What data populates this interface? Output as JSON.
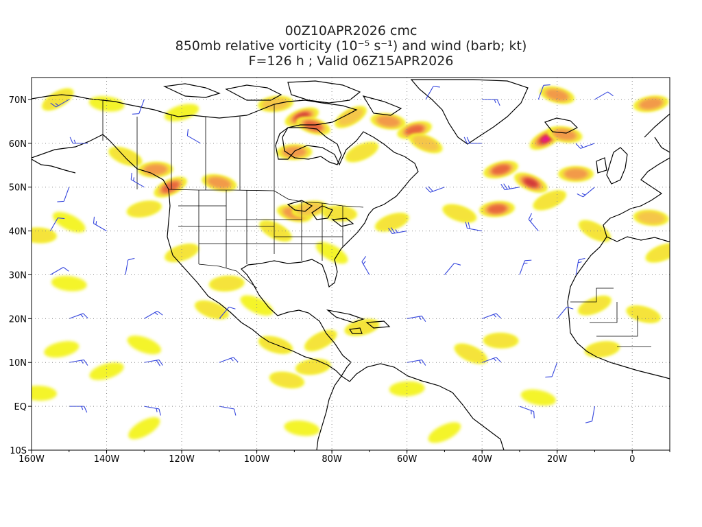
{
  "title": {
    "line1": "00Z10APR2026 cmc",
    "line2": "850mb relative vorticity (10⁻⁵ s⁻¹) and wind (barb; kt)",
    "line3": "F=126 h ; Valid 06Z15APR2026"
  },
  "map": {
    "lon_range": [
      -160,
      10
    ],
    "lat_range": [
      -10,
      75
    ],
    "lon_ticks": [
      {
        "lon": -160,
        "label": "160W"
      },
      {
        "lon": -140,
        "label": "140W"
      },
      {
        "lon": -120,
        "label": "120W"
      },
      {
        "lon": -100,
        "label": "100W"
      },
      {
        "lon": -80,
        "label": "80W"
      },
      {
        "lon": -60,
        "label": "60W"
      },
      {
        "lon": -40,
        "label": "40W"
      },
      {
        "lon": -20,
        "label": "20W"
      },
      {
        "lon": 0,
        "label": "0"
      }
    ],
    "lat_ticks": [
      {
        "lat": -10,
        "label": "10S"
      },
      {
        "lat": 0,
        "label": "EQ"
      },
      {
        "lat": 10,
        "label": "10N"
      },
      {
        "lat": 20,
        "label": "20N"
      },
      {
        "lat": 30,
        "label": "30N"
      },
      {
        "lat": 40,
        "label": "40N"
      },
      {
        "lat": 50,
        "label": "50N"
      },
      {
        "lat": 60,
        "label": "60N"
      },
      {
        "lat": 70,
        "label": "70N"
      }
    ],
    "colors": {
      "coast": "#000000",
      "barb": "#3344dd",
      "grid": "#888888",
      "fill_levels": [
        "#f4f42a",
        "#f5e33a",
        "#f5c64a",
        "#f29a4a",
        "#e8683e",
        "#d23a3a",
        "#ee1199"
      ]
    },
    "vorticity_blobs": [
      {
        "lon": -153,
        "lat": 70,
        "level": 1
      },
      {
        "lon": -140,
        "lat": 69,
        "level": 0
      },
      {
        "lon": -120,
        "lat": 67,
        "level": 0
      },
      {
        "lon": -135,
        "lat": 57,
        "level": 1
      },
      {
        "lon": -127,
        "lat": 54,
        "level": 3
      },
      {
        "lon": -123,
        "lat": 50,
        "level": 4
      },
      {
        "lon": -110,
        "lat": 51,
        "level": 3
      },
      {
        "lon": -130,
        "lat": 45,
        "level": 1
      },
      {
        "lon": -150,
        "lat": 42,
        "level": 0
      },
      {
        "lon": -158,
        "lat": 39,
        "level": 1
      },
      {
        "lon": -88,
        "lat": 66,
        "level": 5
      },
      {
        "lon": -85,
        "lat": 64,
        "level": 4
      },
      {
        "lon": -95,
        "lat": 69,
        "level": 2
      },
      {
        "lon": -75,
        "lat": 66,
        "level": 2
      },
      {
        "lon": -65,
        "lat": 65,
        "level": 3
      },
      {
        "lon": -58,
        "lat": 63,
        "level": 4
      },
      {
        "lon": -55,
        "lat": 60,
        "level": 2
      },
      {
        "lon": -90,
        "lat": 58,
        "level": 3
      },
      {
        "lon": -72,
        "lat": 58,
        "level": 1
      },
      {
        "lon": -90,
        "lat": 44,
        "level": 3
      },
      {
        "lon": -86,
        "lat": 45,
        "level": 2
      },
      {
        "lon": -95,
        "lat": 40,
        "level": 1
      },
      {
        "lon": -78,
        "lat": 44,
        "level": 1
      },
      {
        "lon": -64,
        "lat": 42,
        "level": 1
      },
      {
        "lon": -46,
        "lat": 44,
        "level": 1
      },
      {
        "lon": -36,
        "lat": 45,
        "level": 4
      },
      {
        "lon": -23,
        "lat": 61,
        "level": 6
      },
      {
        "lon": -18,
        "lat": 62,
        "level": 3
      },
      {
        "lon": -35,
        "lat": 54,
        "level": 4
      },
      {
        "lon": -27,
        "lat": 51,
        "level": 5
      },
      {
        "lon": -15,
        "lat": 53,
        "level": 3
      },
      {
        "lon": -22,
        "lat": 47,
        "level": 1
      },
      {
        "lon": -20,
        "lat": 71,
        "level": 3
      },
      {
        "lon": 5,
        "lat": 69,
        "level": 3
      },
      {
        "lon": -10,
        "lat": 40,
        "level": 1
      },
      {
        "lon": 5,
        "lat": 43,
        "level": 2
      },
      {
        "lon": -120,
        "lat": 35,
        "level": 1
      },
      {
        "lon": -112,
        "lat": 22,
        "level": 1
      },
      {
        "lon": -108,
        "lat": 28,
        "level": 1
      },
      {
        "lon": -83,
        "lat": 15,
        "level": 1
      },
      {
        "lon": -92,
        "lat": 6,
        "level": 1
      },
      {
        "lon": -72,
        "lat": 18,
        "level": 1
      },
      {
        "lon": -43,
        "lat": 12,
        "level": 1
      },
      {
        "lon": -35,
        "lat": 15,
        "level": 1
      },
      {
        "lon": -10,
        "lat": 23,
        "level": 1
      },
      {
        "lon": 3,
        "lat": 21,
        "level": 1
      },
      {
        "lon": -8,
        "lat": 13,
        "level": 1
      },
      {
        "lon": -80,
        "lat": 35,
        "level": 0
      },
      {
        "lon": -150,
        "lat": 28,
        "level": 0
      },
      {
        "lon": -140,
        "lat": 8,
        "level": 0
      },
      {
        "lon": -130,
        "lat": 14,
        "level": 0
      },
      {
        "lon": -60,
        "lat": 4,
        "level": 0
      },
      {
        "lon": -50,
        "lat": -6,
        "level": 0
      },
      {
        "lon": -25,
        "lat": 2,
        "level": 0
      },
      {
        "lon": -152,
        "lat": 13,
        "level": 0
      },
      {
        "lon": -100,
        "lat": 23,
        "level": 0
      },
      {
        "lon": -158,
        "lat": 3,
        "level": 0
      },
      {
        "lon": 8,
        "lat": 35,
        "level": 1
      },
      {
        "lon": -95,
        "lat": 14,
        "level": 1
      },
      {
        "lon": -85,
        "lat": 9,
        "level": 1
      },
      {
        "lon": -130,
        "lat": -5,
        "level": 0
      },
      {
        "lon": -88,
        "lat": -5,
        "level": 0
      }
    ],
    "wind_barbs": [
      {
        "lon": -150,
        "lat": 70,
        "dir": 240,
        "kt": 15
      },
      {
        "lon": -130,
        "lat": 70,
        "dir": 200,
        "kt": 10
      },
      {
        "lon": -55,
        "lat": 70,
        "dir": 30,
        "kt": 10
      },
      {
        "lon": -40,
        "lat": 70,
        "dir": 90,
        "kt": 15
      },
      {
        "lon": -25,
        "lat": 70,
        "dir": 20,
        "kt": 10
      },
      {
        "lon": -10,
        "lat": 70,
        "dir": 60,
        "kt": 10
      },
      {
        "lon": -145,
        "lat": 60,
        "dir": 270,
        "kt": 15
      },
      {
        "lon": -115,
        "lat": 60,
        "dir": 300,
        "kt": 10
      },
      {
        "lon": -40,
        "lat": 60,
        "dir": 270,
        "kt": 20
      },
      {
        "lon": -10,
        "lat": 60,
        "dir": 250,
        "kt": 15
      },
      {
        "lon": -150,
        "lat": 50,
        "dir": 200,
        "kt": 10
      },
      {
        "lon": -130,
        "lat": 50,
        "dir": 300,
        "kt": 15
      },
      {
        "lon": -50,
        "lat": 50,
        "dir": 250,
        "kt": 20
      },
      {
        "lon": -30,
        "lat": 50,
        "dir": 260,
        "kt": 25
      },
      {
        "lon": -10,
        "lat": 50,
        "dir": 230,
        "kt": 15
      },
      {
        "lon": -155,
        "lat": 40,
        "dir": 30,
        "kt": 10
      },
      {
        "lon": -140,
        "lat": 40,
        "dir": 300,
        "kt": 15
      },
      {
        "lon": -60,
        "lat": 40,
        "dir": 260,
        "kt": 25
      },
      {
        "lon": -40,
        "lat": 40,
        "dir": 280,
        "kt": 20
      },
      {
        "lon": -25,
        "lat": 40,
        "dir": 320,
        "kt": 15
      },
      {
        "lon": -155,
        "lat": 30,
        "dir": 60,
        "kt": 10
      },
      {
        "lon": -135,
        "lat": 30,
        "dir": 10,
        "kt": 10
      },
      {
        "lon": -70,
        "lat": 30,
        "dir": 330,
        "kt": 15
      },
      {
        "lon": -50,
        "lat": 30,
        "dir": 40,
        "kt": 10
      },
      {
        "lon": -30,
        "lat": 30,
        "dir": 20,
        "kt": 15
      },
      {
        "lon": -15,
        "lat": 30,
        "dir": 10,
        "kt": 15
      },
      {
        "lon": -150,
        "lat": 20,
        "dir": 70,
        "kt": 15
      },
      {
        "lon": -130,
        "lat": 20,
        "dir": 60,
        "kt": 15
      },
      {
        "lon": -110,
        "lat": 20,
        "dir": 40,
        "kt": 10
      },
      {
        "lon": -60,
        "lat": 20,
        "dir": 80,
        "kt": 15
      },
      {
        "lon": -40,
        "lat": 20,
        "dir": 70,
        "kt": 15
      },
      {
        "lon": -20,
        "lat": 20,
        "dir": 40,
        "kt": 10
      },
      {
        "lon": -150,
        "lat": 10,
        "dir": 80,
        "kt": 15
      },
      {
        "lon": -130,
        "lat": 10,
        "dir": 80,
        "kt": 20
      },
      {
        "lon": -110,
        "lat": 10,
        "dir": 70,
        "kt": 15
      },
      {
        "lon": -60,
        "lat": 10,
        "dir": 80,
        "kt": 15
      },
      {
        "lon": -40,
        "lat": 10,
        "dir": 70,
        "kt": 15
      },
      {
        "lon": -20,
        "lat": 10,
        "dir": 200,
        "kt": 10
      },
      {
        "lon": -150,
        "lat": 0,
        "dir": 90,
        "kt": 15
      },
      {
        "lon": -130,
        "lat": 0,
        "dir": 100,
        "kt": 15
      },
      {
        "lon": -110,
        "lat": 0,
        "dir": 100,
        "kt": 10
      },
      {
        "lon": -30,
        "lat": 0,
        "dir": 110,
        "kt": 15
      },
      {
        "lon": -10,
        "lat": 0,
        "dir": 190,
        "kt": 10
      },
      {
        "lon": -150,
        "lat": -10,
        "dir": 100,
        "kt": 10
      },
      {
        "lon": -120,
        "lat": -10,
        "dir": 110,
        "kt": 10
      },
      {
        "lon": -40,
        "lat": -10,
        "dir": 120,
        "kt": 15
      }
    ]
  }
}
